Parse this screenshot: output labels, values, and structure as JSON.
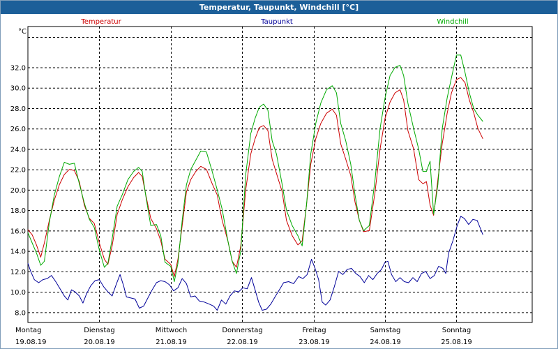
{
  "window": {
    "title": "Temperatur, Taupunkt, Windchill [°C]"
  },
  "chart_data": {
    "type": "line",
    "title": "Temperatur, Taupunkt, Windchill [°C]",
    "ylabel": "°C",
    "ylim": [
      7,
      36
    ],
    "yticks": [
      8,
      10,
      12,
      14,
      16,
      18,
      20,
      22,
      24,
      26,
      28,
      30,
      32
    ],
    "xlim": [
      0,
      7.06
    ],
    "grid": true,
    "legend_position": "top",
    "x_ticks": [
      {
        "day": "Montag",
        "date": "19.08.19"
      },
      {
        "day": "Dienstag",
        "date": "20.08.19"
      },
      {
        "day": "Mittwoch",
        "date": "21.08.19"
      },
      {
        "day": "Donnerstag",
        "date": "22.08.19"
      },
      {
        "day": "Freitag",
        "date": "23.08.19"
      },
      {
        "day": "Samstag",
        "date": "24.08.19"
      },
      {
        "day": "Sonntag",
        "date": "25.08.19"
      }
    ],
    "series": [
      {
        "name": "Temperatur",
        "color": "#cc0000",
        "points": [
          [
            0.0,
            16.1
          ],
          [
            0.06,
            15.6
          ],
          [
            0.12,
            14.6
          ],
          [
            0.18,
            13.4
          ],
          [
            0.23,
            14.8
          ],
          [
            0.3,
            17.0
          ],
          [
            0.37,
            19.0
          ],
          [
            0.44,
            20.5
          ],
          [
            0.51,
            21.5
          ],
          [
            0.58,
            22.0
          ],
          [
            0.65,
            21.9
          ],
          [
            0.72,
            20.8
          ],
          [
            0.79,
            18.5
          ],
          [
            0.86,
            17.2
          ],
          [
            0.93,
            16.7
          ],
          [
            1.0,
            14.8
          ],
          [
            1.07,
            13.2
          ],
          [
            1.12,
            12.7
          ],
          [
            1.18,
            14.5
          ],
          [
            1.25,
            17.6
          ],
          [
            1.32,
            19.0
          ],
          [
            1.4,
            20.3
          ],
          [
            1.48,
            21.2
          ],
          [
            1.55,
            21.7
          ],
          [
            1.6,
            21.3
          ],
          [
            1.65,
            19.5
          ],
          [
            1.72,
            17.2
          ],
          [
            1.8,
            16.2
          ],
          [
            1.86,
            15.0
          ],
          [
            1.92,
            13.2
          ],
          [
            2.0,
            12.7
          ],
          [
            2.05,
            11.5
          ],
          [
            2.1,
            13.2
          ],
          [
            2.16,
            16.5
          ],
          [
            2.22,
            19.8
          ],
          [
            2.28,
            21.0
          ],
          [
            2.35,
            21.8
          ],
          [
            2.42,
            22.3
          ],
          [
            2.5,
            22.0
          ],
          [
            2.58,
            20.6
          ],
          [
            2.65,
            19.5
          ],
          [
            2.72,
            17.0
          ],
          [
            2.8,
            15.0
          ],
          [
            2.86,
            13.0
          ],
          [
            2.92,
            12.4
          ],
          [
            2.98,
            14.5
          ],
          [
            3.05,
            20.0
          ],
          [
            3.12,
            23.5
          ],
          [
            3.18,
            25.0
          ],
          [
            3.24,
            26.1
          ],
          [
            3.3,
            26.3
          ],
          [
            3.36,
            25.8
          ],
          [
            3.42,
            23.0
          ],
          [
            3.48,
            21.6
          ],
          [
            3.56,
            19.8
          ],
          [
            3.62,
            17.0
          ],
          [
            3.7,
            15.5
          ],
          [
            3.78,
            14.6
          ],
          [
            3.84,
            15.0
          ],
          [
            3.9,
            18.5
          ],
          [
            3.96,
            22.5
          ],
          [
            4.03,
            25.0
          ],
          [
            4.1,
            26.5
          ],
          [
            4.18,
            27.5
          ],
          [
            4.26,
            27.9
          ],
          [
            4.32,
            27.3
          ],
          [
            4.38,
            24.5
          ],
          [
            4.45,
            23.0
          ],
          [
            4.52,
            21.4
          ],
          [
            4.58,
            18.8
          ],
          [
            4.64,
            17.0
          ],
          [
            4.7,
            15.9
          ],
          [
            4.78,
            16.0
          ],
          [
            4.86,
            19.8
          ],
          [
            4.93,
            24.0
          ],
          [
            5.0,
            27.0
          ],
          [
            5.07,
            28.6
          ],
          [
            5.14,
            29.5
          ],
          [
            5.21,
            29.8
          ],
          [
            5.26,
            28.8
          ],
          [
            5.32,
            25.8
          ],
          [
            5.4,
            24.0
          ],
          [
            5.47,
            21.0
          ],
          [
            5.53,
            20.6
          ],
          [
            5.58,
            20.8
          ],
          [
            5.63,
            18.5
          ],
          [
            5.68,
            17.5
          ],
          [
            5.74,
            21.0
          ],
          [
            5.8,
            24.5
          ],
          [
            5.87,
            27.5
          ],
          [
            5.93,
            29.5
          ],
          [
            6.0,
            30.8
          ],
          [
            6.06,
            31.0
          ],
          [
            6.12,
            30.5
          ],
          [
            6.18,
            28.8
          ],
          [
            6.24,
            27.6
          ],
          [
            6.3,
            26.0
          ],
          [
            6.37,
            25.0
          ]
        ]
      },
      {
        "name": "Taupunkt",
        "color": "#000099",
        "points": [
          [
            0.0,
            12.8
          ],
          [
            0.04,
            12.0
          ],
          [
            0.09,
            11.2
          ],
          [
            0.15,
            10.9
          ],
          [
            0.21,
            11.2
          ],
          [
            0.27,
            11.3
          ],
          [
            0.33,
            11.6
          ],
          [
            0.39,
            11.0
          ],
          [
            0.45,
            10.3
          ],
          [
            0.51,
            9.6
          ],
          [
            0.56,
            9.2
          ],
          [
            0.61,
            10.2
          ],
          [
            0.66,
            10.0
          ],
          [
            0.72,
            9.6
          ],
          [
            0.77,
            8.9
          ],
          [
            0.82,
            9.8
          ],
          [
            0.88,
            10.6
          ],
          [
            0.94,
            11.1
          ],
          [
            1.0,
            11.2
          ],
          [
            1.06,
            10.5
          ],
          [
            1.12,
            10.0
          ],
          [
            1.18,
            9.6
          ],
          [
            1.24,
            10.8
          ],
          [
            1.29,
            11.7
          ],
          [
            1.34,
            10.6
          ],
          [
            1.38,
            9.5
          ],
          [
            1.44,
            9.4
          ],
          [
            1.5,
            9.3
          ],
          [
            1.56,
            8.4
          ],
          [
            1.62,
            8.6
          ],
          [
            1.68,
            9.4
          ],
          [
            1.74,
            10.2
          ],
          [
            1.8,
            10.9
          ],
          [
            1.86,
            11.1
          ],
          [
            1.92,
            11.0
          ],
          [
            1.98,
            10.7
          ],
          [
            2.04,
            10.1
          ],
          [
            2.1,
            10.4
          ],
          [
            2.16,
            11.3
          ],
          [
            2.22,
            10.8
          ],
          [
            2.28,
            9.5
          ],
          [
            2.34,
            9.6
          ],
          [
            2.4,
            9.1
          ],
          [
            2.47,
            9.0
          ],
          [
            2.54,
            8.8
          ],
          [
            2.6,
            8.6
          ],
          [
            2.65,
            8.2
          ],
          [
            2.71,
            9.2
          ],
          [
            2.77,
            8.8
          ],
          [
            2.83,
            9.6
          ],
          [
            2.89,
            10.1
          ],
          [
            2.95,
            10.0
          ],
          [
            3.01,
            10.4
          ],
          [
            3.07,
            10.3
          ],
          [
            3.13,
            11.4
          ],
          [
            3.18,
            10.2
          ],
          [
            3.23,
            9.0
          ],
          [
            3.28,
            8.2
          ],
          [
            3.34,
            8.3
          ],
          [
            3.4,
            8.8
          ],
          [
            3.46,
            9.5
          ],
          [
            3.52,
            10.2
          ],
          [
            3.58,
            10.9
          ],
          [
            3.65,
            11.0
          ],
          [
            3.72,
            10.8
          ],
          [
            3.79,
            11.5
          ],
          [
            3.85,
            11.3
          ],
          [
            3.91,
            11.7
          ],
          [
            3.97,
            13.2
          ],
          [
            4.02,
            12.3
          ],
          [
            4.07,
            11.2
          ],
          [
            4.12,
            9.0
          ],
          [
            4.17,
            8.7
          ],
          [
            4.23,
            9.2
          ],
          [
            4.29,
            10.5
          ],
          [
            4.35,
            12.0
          ],
          [
            4.41,
            11.7
          ],
          [
            4.47,
            12.2
          ],
          [
            4.53,
            12.3
          ],
          [
            4.59,
            11.8
          ],
          [
            4.65,
            11.5
          ],
          [
            4.71,
            10.9
          ],
          [
            4.77,
            11.6
          ],
          [
            4.83,
            11.2
          ],
          [
            4.89,
            11.8
          ],
          [
            4.95,
            12.2
          ],
          [
            5.0,
            12.9
          ],
          [
            5.04,
            13.0
          ],
          [
            5.09,
            11.7
          ],
          [
            5.15,
            11.0
          ],
          [
            5.21,
            11.4
          ],
          [
            5.27,
            11.0
          ],
          [
            5.33,
            10.9
          ],
          [
            5.39,
            11.4
          ],
          [
            5.45,
            11.0
          ],
          [
            5.51,
            11.8
          ],
          [
            5.57,
            12.0
          ],
          [
            5.63,
            11.3
          ],
          [
            5.69,
            11.6
          ],
          [
            5.75,
            12.5
          ],
          [
            5.81,
            12.3
          ],
          [
            5.85,
            11.8
          ],
          [
            5.89,
            13.8
          ],
          [
            5.95,
            15.0
          ],
          [
            6.01,
            16.5
          ],
          [
            6.06,
            17.4
          ],
          [
            6.11,
            17.2
          ],
          [
            6.17,
            16.6
          ],
          [
            6.23,
            17.1
          ],
          [
            6.29,
            17.0
          ],
          [
            6.33,
            16.3
          ],
          [
            6.37,
            15.6
          ]
        ]
      },
      {
        "name": "Windchill",
        "color": "#00aa00",
        "points": [
          [
            0.0,
            15.8
          ],
          [
            0.06,
            14.8
          ],
          [
            0.12,
            13.8
          ],
          [
            0.18,
            12.6
          ],
          [
            0.23,
            13.0
          ],
          [
            0.3,
            16.8
          ],
          [
            0.37,
            19.5
          ],
          [
            0.44,
            21.3
          ],
          [
            0.51,
            22.7
          ],
          [
            0.58,
            22.5
          ],
          [
            0.65,
            22.6
          ],
          [
            0.72,
            20.6
          ],
          [
            0.79,
            18.7
          ],
          [
            0.86,
            17.1
          ],
          [
            0.93,
            16.3
          ],
          [
            1.0,
            14.1
          ],
          [
            1.07,
            12.4
          ],
          [
            1.12,
            12.8
          ],
          [
            1.18,
            15.2
          ],
          [
            1.25,
            18.4
          ],
          [
            1.32,
            19.5
          ],
          [
            1.4,
            21.0
          ],
          [
            1.48,
            21.8
          ],
          [
            1.55,
            22.2
          ],
          [
            1.6,
            21.8
          ],
          [
            1.65,
            19.4
          ],
          [
            1.72,
            16.5
          ],
          [
            1.8,
            16.6
          ],
          [
            1.86,
            15.5
          ],
          [
            1.92,
            12.9
          ],
          [
            2.0,
            12.5
          ],
          [
            2.05,
            11.0
          ],
          [
            2.1,
            12.8
          ],
          [
            2.16,
            17.0
          ],
          [
            2.22,
            20.5
          ],
          [
            2.28,
            22.0
          ],
          [
            2.35,
            22.9
          ],
          [
            2.42,
            23.8
          ],
          [
            2.5,
            23.7
          ],
          [
            2.58,
            21.8
          ],
          [
            2.65,
            20.0
          ],
          [
            2.72,
            18.1
          ],
          [
            2.8,
            15.0
          ],
          [
            2.86,
            13.0
          ],
          [
            2.92,
            11.8
          ],
          [
            2.98,
            14.0
          ],
          [
            3.05,
            21.5
          ],
          [
            3.12,
            25.5
          ],
          [
            3.18,
            27.0
          ],
          [
            3.24,
            28.1
          ],
          [
            3.3,
            28.4
          ],
          [
            3.36,
            27.8
          ],
          [
            3.42,
            24.8
          ],
          [
            3.48,
            23.5
          ],
          [
            3.56,
            20.5
          ],
          [
            3.62,
            18.0
          ],
          [
            3.7,
            16.5
          ],
          [
            3.78,
            15.5
          ],
          [
            3.84,
            14.5
          ],
          [
            3.9,
            18.5
          ],
          [
            3.96,
            23.5
          ],
          [
            4.03,
            26.5
          ],
          [
            4.1,
            28.5
          ],
          [
            4.18,
            29.8
          ],
          [
            4.26,
            30.2
          ],
          [
            4.32,
            29.5
          ],
          [
            4.38,
            26.5
          ],
          [
            4.45,
            24.8
          ],
          [
            4.52,
            22.5
          ],
          [
            4.58,
            19.5
          ],
          [
            4.64,
            17.0
          ],
          [
            4.7,
            16.0
          ],
          [
            4.78,
            16.5
          ],
          [
            4.86,
            21.0
          ],
          [
            4.93,
            26.0
          ],
          [
            5.0,
            29.0
          ],
          [
            5.07,
            31.2
          ],
          [
            5.14,
            32.0
          ],
          [
            5.21,
            32.2
          ],
          [
            5.26,
            31.2
          ],
          [
            5.32,
            28.5
          ],
          [
            5.4,
            26.0
          ],
          [
            5.47,
            24.0
          ],
          [
            5.53,
            21.8
          ],
          [
            5.58,
            21.8
          ],
          [
            5.63,
            22.8
          ],
          [
            5.68,
            17.6
          ],
          [
            5.74,
            20.5
          ],
          [
            5.8,
            26.0
          ],
          [
            5.87,
            29.0
          ],
          [
            5.93,
            31.0
          ],
          [
            6.0,
            33.2
          ],
          [
            6.06,
            33.2
          ],
          [
            6.12,
            31.5
          ],
          [
            6.18,
            29.5
          ],
          [
            6.24,
            28.0
          ],
          [
            6.3,
            27.3
          ],
          [
            6.37,
            26.7
          ]
        ]
      }
    ]
  }
}
